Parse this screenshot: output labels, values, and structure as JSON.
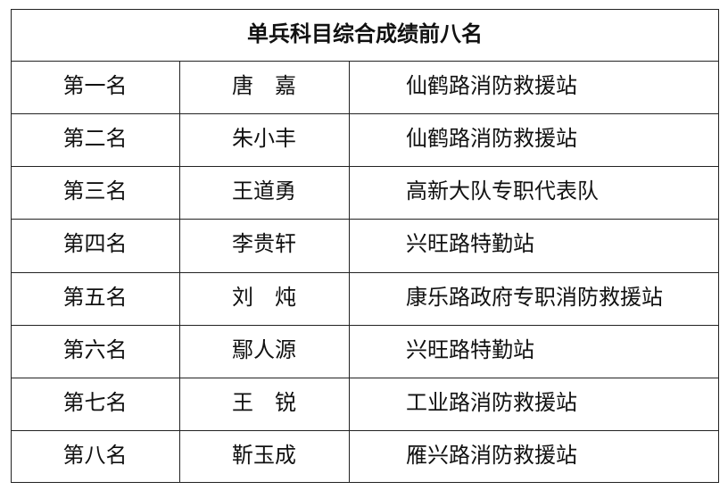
{
  "table": {
    "title": "单兵科目综合成绩前八名",
    "rows": [
      [
        "第一名",
        "唐　嘉",
        "仙鹤路消防救援站"
      ],
      [
        "第二名",
        "朱小丰",
        "仙鹤路消防救援站"
      ],
      [
        "第三名",
        "王道勇",
        "高新大队专职代表队"
      ],
      [
        "第四名",
        "李贵轩",
        "兴旺路特勤站"
      ],
      [
        "第五名",
        "刘　炖",
        "康乐路政府专职消防救援站"
      ],
      [
        "第六名",
        "鄢人源",
        "兴旺路特勤站"
      ],
      [
        "第七名",
        "王　锐",
        "工业路消防救援站"
      ],
      [
        "第八名",
        "靳玉成",
        "雁兴路消防救援站"
      ]
    ]
  }
}
